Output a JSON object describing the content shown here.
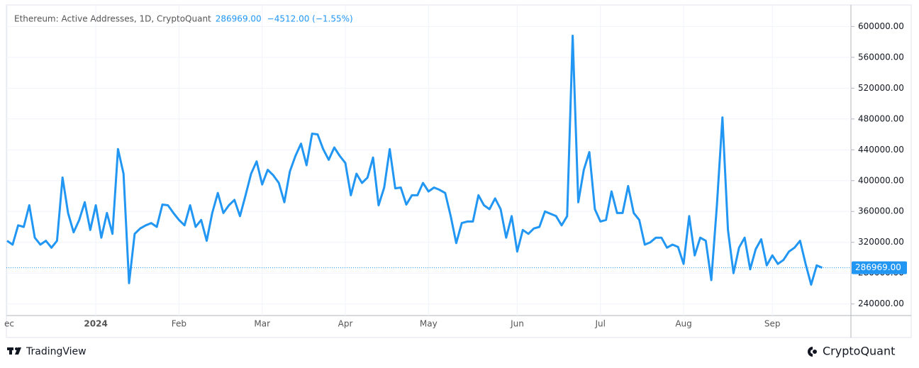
{
  "chart_data": {
    "type": "line",
    "title": "Ethereum: Active Addresses, 1D, CryptoQuant",
    "legend_value": "286969.00",
    "legend_change": "−4512.00 (−1.55%)",
    "last_value_tag": "286969.00",
    "color": "#2196f3",
    "grid": true,
    "categories": [
      "ec",
      null,
      null,
      null,
      null,
      null,
      null,
      null,
      null,
      null,
      null,
      null,
      null,
      null,
      null,
      null,
      "2024",
      null,
      null,
      null,
      null,
      null,
      null,
      null,
      null,
      null,
      null,
      null,
      null,
      null,
      null,
      "Feb",
      null,
      null,
      null,
      null,
      null,
      null,
      null,
      null,
      null,
      null,
      null,
      null,
      null,
      null,
      "Mar",
      null,
      null,
      null,
      null,
      null,
      null,
      null,
      null,
      null,
      null,
      null,
      null,
      null,
      null,
      "Apr",
      null,
      null,
      null,
      null,
      null,
      null,
      null,
      null,
      null,
      null,
      null,
      null,
      null,
      null,
      "May",
      null,
      null,
      null,
      null,
      null,
      null,
      null,
      null,
      null,
      null,
      null,
      null,
      null,
      null,
      null,
      "Jun",
      null,
      null,
      null,
      null,
      null,
      null,
      null,
      null,
      null,
      null,
      null,
      null,
      null,
      null,
      "Jul",
      null,
      null,
      null,
      null,
      null,
      null,
      null,
      null,
      null,
      null,
      null,
      null,
      null,
      null,
      "Aug",
      null,
      null,
      null,
      null,
      null,
      null,
      null,
      null,
      null,
      null,
      null,
      null,
      null,
      null,
      null,
      "Sep",
      null,
      null,
      null,
      null,
      null,
      null,
      null,
      null,
      null
    ],
    "values": [
      322000,
      317000,
      342000,
      340000,
      368000,
      326000,
      317000,
      322000,
      313000,
      322000,
      404000,
      358000,
      333000,
      349000,
      372000,
      336000,
      368000,
      326000,
      358000,
      331000,
      441000,
      409000,
      267000,
      331000,
      338000,
      342000,
      345000,
      340000,
      369000,
      368000,
      358000,
      349000,
      342000,
      368000,
      340000,
      349000,
      322000,
      358000,
      384000,
      358000,
      368000,
      375000,
      354000,
      381000,
      409000,
      425000,
      395000,
      414000,
      407000,
      397000,
      372000,
      412000,
      432000,
      448000,
      420000,
      461000,
      460000,
      441000,
      427000,
      443000,
      432000,
      423000,
      381000,
      409000,
      397000,
      404000,
      430000,
      368000,
      391000,
      441000,
      390000,
      391000,
      369000,
      381000,
      381000,
      397000,
      386000,
      391000,
      388000,
      384000,
      354000,
      319000,
      345000,
      347000,
      347000,
      381000,
      368000,
      363000,
      377000,
      363000,
      326000,
      354000,
      308000,
      336000,
      331000,
      338000,
      340000,
      360000,
      357000,
      354000,
      342000,
      354000,
      588000,
      372000,
      414000,
      437000,
      363000,
      347000,
      349000,
      386000,
      358000,
      358000,
      393000,
      358000,
      349000,
      317000,
      320000,
      326000,
      326000,
      313000,
      317000,
      314000,
      292000,
      354000,
      303000,
      326000,
      322000,
      271000,
      368000,
      482000,
      336000,
      280000,
      313000,
      326000,
      285000,
      311000,
      324000,
      290000,
      303000,
      292000,
      297000,
      308000,
      313000,
      322000,
      292000,
      265000,
      290000,
      286969
    ],
    "ylim": [
      225000,
      627000
    ],
    "yticks": [
      {
        "value": 240000,
        "label": "240000.00"
      },
      {
        "value": 280000,
        "label": "280000.00"
      },
      {
        "value": 320000,
        "label": "320000.00"
      },
      {
        "value": 360000,
        "label": "360000.00"
      },
      {
        "value": 400000,
        "label": "400000.00"
      },
      {
        "value": 440000,
        "label": "440000.00"
      },
      {
        "value": 480000,
        "label": "480000.00"
      },
      {
        "value": 520000,
        "label": "520000.00"
      },
      {
        "value": 560000,
        "label": "560000.00"
      },
      {
        "value": 600000,
        "label": "600000.00"
      }
    ]
  },
  "footer": {
    "left_brand": "TradingView",
    "right_brand": "CryptoQuant"
  }
}
